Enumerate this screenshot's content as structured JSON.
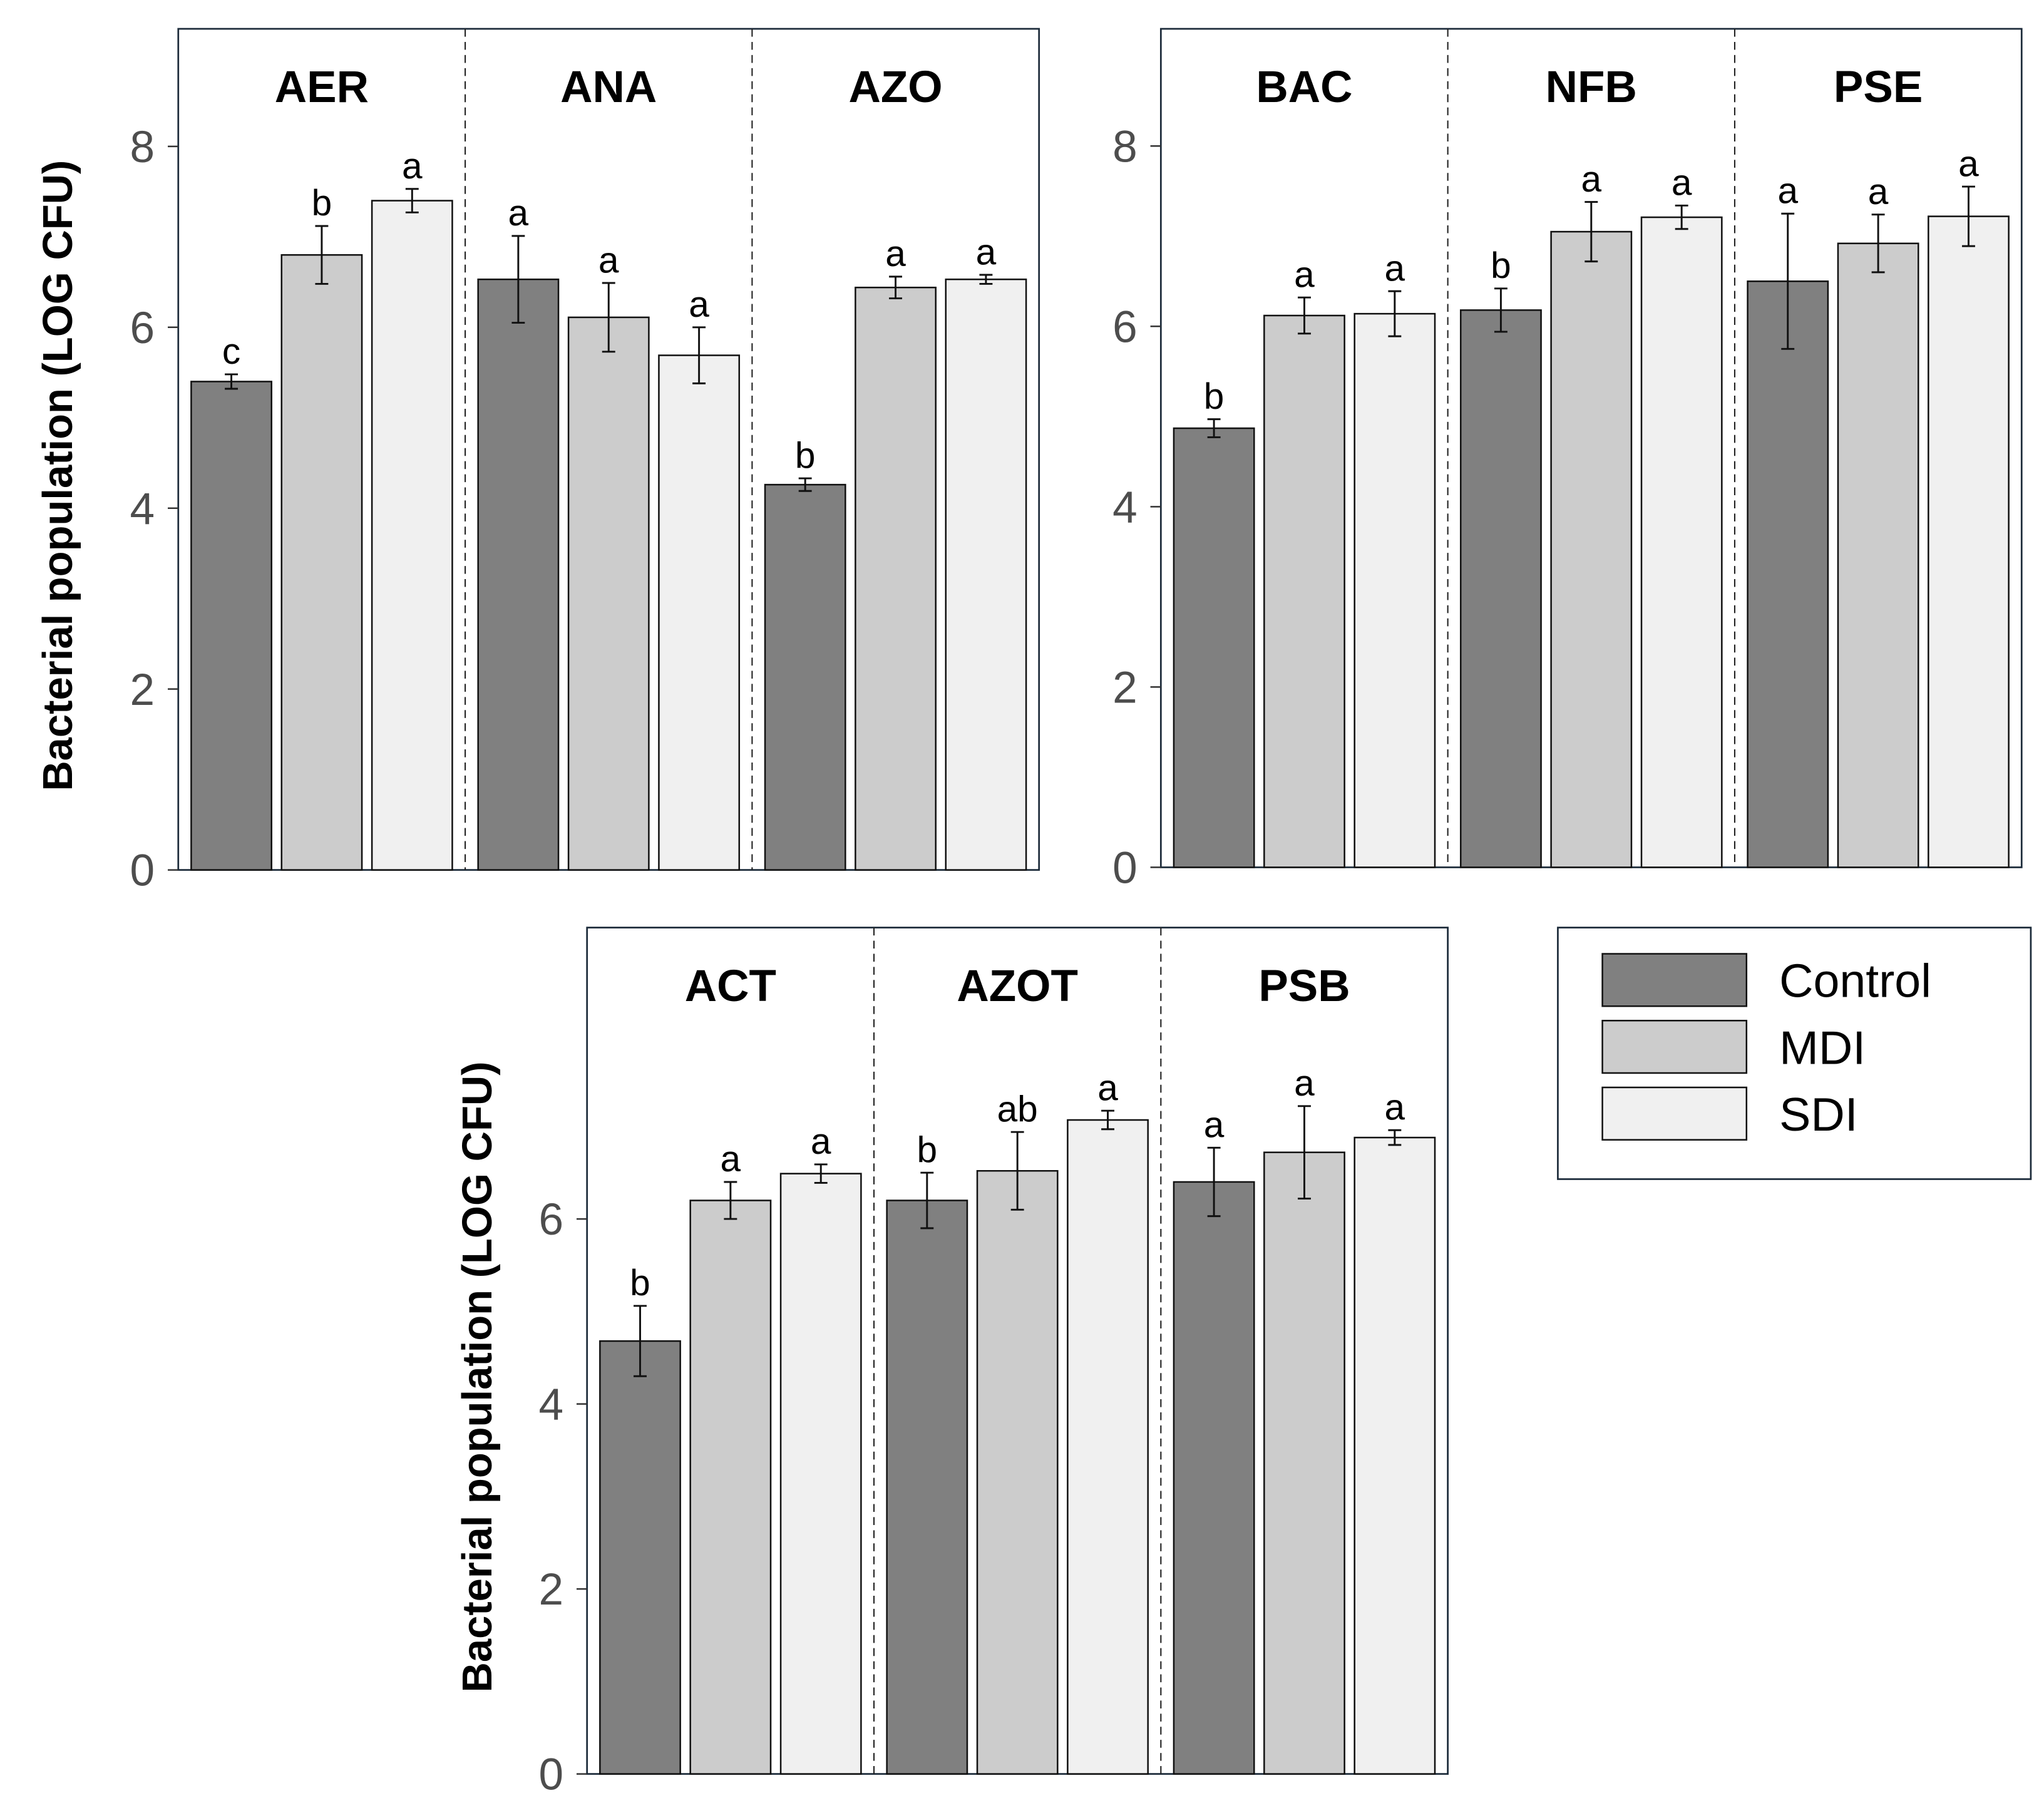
{
  "chart_data": {
    "type": "bar",
    "ylabel": "Bacterial population (LOG CFU)",
    "legend": {
      "position": "right",
      "entries": [
        "Control",
        "MDI",
        "SDI"
      ]
    },
    "colors": {
      "Control": "#808080",
      "MDI": "#cccccc",
      "SDI": "#f0f0f0"
    },
    "panels": [
      {
        "ylim": [
          0,
          9.3
        ],
        "yticks": [
          "0",
          "2",
          "4",
          "6",
          "8"
        ],
        "show_ylabel": true,
        "groups": [
          {
            "name": "AER",
            "values": [
              5.4,
              6.8,
              7.4
            ],
            "errors": [
              0.08,
              0.32,
              0.13
            ],
            "letters": [
              "c",
              "b",
              "a"
            ]
          },
          {
            "name": "ANA",
            "values": [
              6.53,
              6.11,
              5.69
            ],
            "errors": [
              0.48,
              0.38,
              0.31
            ],
            "letters": [
              "a",
              "a",
              "a"
            ]
          },
          {
            "name": "AZO",
            "values": [
              4.26,
              6.44,
              6.53
            ],
            "errors": [
              0.07,
              0.12,
              0.05
            ],
            "letters": [
              "b",
              "a",
              "a"
            ]
          }
        ]
      },
      {
        "ylim": [
          0,
          9.3
        ],
        "yticks": [
          "0",
          "2",
          "4",
          "6",
          "8"
        ],
        "show_ylabel": false,
        "groups": [
          {
            "name": "BAC",
            "values": [
              4.87,
              6.12,
              6.14
            ],
            "errors": [
              0.1,
              0.2,
              0.25
            ],
            "letters": [
              "b",
              "a",
              "a"
            ]
          },
          {
            "name": "NFB",
            "values": [
              6.18,
              7.05,
              7.21
            ],
            "errors": [
              0.24,
              0.33,
              0.13
            ],
            "letters": [
              "b",
              "a",
              "a"
            ]
          },
          {
            "name": "PSE",
            "values": [
              6.5,
              6.92,
              7.22
            ],
            "errors": [
              0.75,
              0.32,
              0.33
            ],
            "letters": [
              "a",
              "a",
              "a"
            ]
          }
        ]
      },
      {
        "ylim": [
          0,
          9.15
        ],
        "yticks": [
          "0",
          "2",
          "4",
          "6"
        ],
        "show_ylabel": true,
        "groups": [
          {
            "name": "ACT",
            "values": [
              4.68,
              6.2,
              6.49
            ],
            "errors": [
              0.38,
              0.2,
              0.1
            ],
            "letters": [
              "b",
              "a",
              "a"
            ]
          },
          {
            "name": "AZOT",
            "values": [
              6.2,
              6.52,
              7.07
            ],
            "errors": [
              0.3,
              0.42,
              0.1
            ],
            "letters": [
              "b",
              "ab",
              "a"
            ]
          },
          {
            "name": "PSB",
            "values": [
              6.4,
              6.72,
              6.88
            ],
            "errors": [
              0.37,
              0.5,
              0.08
            ],
            "letters": [
              "a",
              "a",
              "a"
            ]
          }
        ]
      }
    ]
  }
}
